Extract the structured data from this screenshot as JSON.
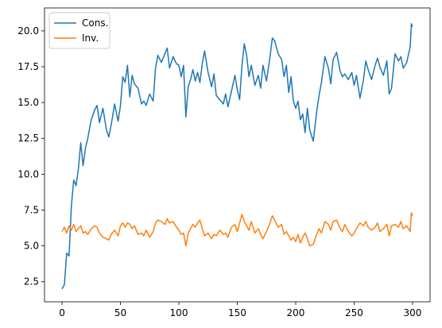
{
  "chart_data": {
    "type": "line",
    "title": "",
    "xlabel": "",
    "ylabel": "",
    "xlim": [
      -15,
      315
    ],
    "ylim": [
      1.1,
      21.6
    ],
    "x_ticks": [
      0,
      50,
      100,
      150,
      200,
      250,
      300
    ],
    "x_tick_labels": [
      "0",
      "50",
      "100",
      "150",
      "200",
      "250",
      "300"
    ],
    "y_ticks": [
      2.5,
      5.0,
      7.5,
      10.0,
      12.5,
      15.0,
      17.5,
      20.0
    ],
    "y_tick_labels": [
      "2.5",
      "5.0",
      "7.5",
      "10.0",
      "12.5",
      "15.0",
      "17.5",
      "20.0"
    ],
    "grid": false,
    "legend_position": "top-left",
    "series": [
      {
        "name": "Cons.",
        "color": "#1f77b4",
        "x": [
          0,
          2,
          4,
          6,
          8,
          10,
          12,
          14,
          16,
          18,
          20,
          22,
          25,
          28,
          30,
          32,
          35,
          38,
          40,
          42,
          45,
          48,
          50,
          52,
          54,
          56,
          58,
          60,
          62,
          65,
          68,
          70,
          72,
          75,
          78,
          80,
          82,
          85,
          88,
          90,
          92,
          95,
          98,
          100,
          102,
          104,
          106,
          108,
          110,
          112,
          114,
          116,
          118,
          120,
          122,
          125,
          128,
          130,
          132,
          135,
          138,
          140,
          142,
          145,
          148,
          150,
          152,
          154,
          156,
          158,
          160,
          162,
          165,
          168,
          170,
          172,
          175,
          178,
          180,
          182,
          185,
          188,
          190,
          192,
          194,
          196,
          198,
          200,
          202,
          204,
          206,
          208,
          210,
          212,
          215,
          218,
          220,
          222,
          225,
          228,
          230,
          232,
          235,
          238,
          240,
          242,
          245,
          248,
          250,
          252,
          255,
          258,
          260,
          262,
          265,
          268,
          270,
          272,
          275,
          278,
          280,
          282,
          285,
          288,
          290,
          292,
          295,
          298,
          299,
          300
        ],
        "y": [
          2.0,
          2.3,
          4.5,
          4.3,
          7.8,
          9.6,
          9.2,
          10.4,
          12.2,
          10.6,
          11.8,
          12.5,
          13.8,
          14.5,
          14.8,
          13.6,
          14.6,
          13.1,
          12.6,
          13.4,
          14.9,
          13.7,
          14.8,
          16.8,
          16.4,
          17.6,
          15.4,
          16.9,
          16.3,
          16.0,
          14.9,
          15.1,
          14.8,
          15.6,
          15.1,
          17.4,
          18.3,
          17.8,
          18.4,
          18.8,
          17.4,
          18.2,
          17.7,
          17.6,
          16.8,
          17.6,
          14.0,
          16.1,
          16.6,
          17.3,
          16.5,
          17.1,
          16.4,
          17.7,
          18.6,
          17.1,
          16.1,
          17.0,
          15.5,
          15.2,
          14.9,
          15.6,
          14.7,
          15.8,
          16.9,
          15.9,
          15.2,
          17.6,
          19.1,
          18.3,
          16.8,
          17.6,
          16.2,
          16.9,
          16.0,
          17.6,
          16.5,
          18.2,
          19.5,
          19.3,
          18.4,
          18.0,
          16.8,
          17.6,
          15.7,
          16.8,
          15.1,
          14.6,
          15.1,
          13.8,
          14.2,
          12.9,
          14.6,
          13.1,
          12.3,
          14.4,
          15.5,
          16.4,
          18.2,
          17.4,
          16.3,
          18.0,
          18.5,
          17.2,
          16.8,
          17.0,
          16.6,
          17.1,
          16.2,
          16.9,
          15.3,
          16.6,
          17.9,
          17.3,
          16.6,
          17.6,
          18.1,
          17.5,
          16.9,
          17.9,
          15.6,
          16.0,
          18.4,
          17.9,
          18.2,
          17.4,
          17.8,
          18.9,
          20.5,
          20.3
        ]
      },
      {
        "name": "Inv.",
        "color": "#ff7f0e",
        "x": [
          0,
          2,
          4,
          6,
          8,
          10,
          12,
          14,
          16,
          18,
          20,
          22,
          25,
          28,
          30,
          32,
          35,
          38,
          40,
          42,
          45,
          48,
          50,
          52,
          54,
          56,
          58,
          60,
          62,
          65,
          68,
          70,
          72,
          75,
          78,
          80,
          82,
          85,
          88,
          90,
          92,
          95,
          98,
          100,
          102,
          104,
          106,
          108,
          110,
          112,
          114,
          116,
          118,
          120,
          122,
          125,
          128,
          130,
          132,
          135,
          138,
          140,
          142,
          145,
          148,
          150,
          152,
          154,
          156,
          158,
          160,
          162,
          165,
          168,
          170,
          172,
          175,
          178,
          180,
          182,
          185,
          188,
          190,
          192,
          194,
          196,
          198,
          200,
          202,
          204,
          206,
          208,
          210,
          212,
          215,
          218,
          220,
          222,
          225,
          228,
          230,
          232,
          235,
          238,
          240,
          242,
          245,
          248,
          250,
          252,
          255,
          258,
          260,
          262,
          265,
          268,
          270,
          272,
          275,
          278,
          280,
          282,
          285,
          288,
          290,
          292,
          295,
          298,
          299,
          300
        ],
        "y": [
          6.0,
          6.3,
          5.9,
          6.4,
          6.1,
          6.5,
          6.0,
          6.2,
          6.4,
          5.9,
          6.0,
          5.8,
          6.2,
          6.4,
          6.3,
          5.9,
          5.6,
          5.5,
          5.4,
          5.8,
          6.1,
          5.7,
          6.4,
          6.6,
          6.3,
          6.6,
          6.5,
          6.2,
          6.4,
          5.8,
          5.9,
          5.7,
          6.1,
          5.6,
          6.0,
          6.6,
          6.8,
          6.7,
          6.5,
          6.9,
          6.6,
          6.7,
          6.3,
          6.1,
          5.8,
          5.9,
          5.0,
          5.9,
          6.2,
          6.5,
          6.3,
          6.6,
          6.8,
          6.2,
          5.7,
          5.9,
          5.5,
          5.8,
          5.7,
          6.1,
          5.8,
          5.9,
          5.6,
          6.3,
          6.5,
          6.0,
          6.6,
          7.2,
          6.7,
          6.4,
          6.1,
          6.7,
          5.9,
          6.2,
          5.8,
          5.5,
          6.0,
          6.6,
          7.1,
          6.8,
          6.3,
          6.5,
          5.8,
          6.0,
          5.7,
          5.4,
          5.6,
          5.3,
          5.8,
          5.2,
          5.6,
          5.9,
          5.5,
          5.0,
          5.1,
          5.8,
          6.2,
          5.9,
          6.7,
          6.5,
          6.1,
          6.7,
          6.8,
          6.2,
          6.0,
          6.5,
          6.0,
          5.7,
          5.9,
          6.2,
          6.6,
          6.4,
          6.7,
          6.3,
          6.1,
          6.3,
          6.6,
          6.0,
          6.2,
          6.5,
          5.7,
          6.4,
          6.5,
          6.3,
          6.7,
          6.2,
          6.4,
          6.0,
          7.3,
          7.1
        ]
      }
    ]
  }
}
